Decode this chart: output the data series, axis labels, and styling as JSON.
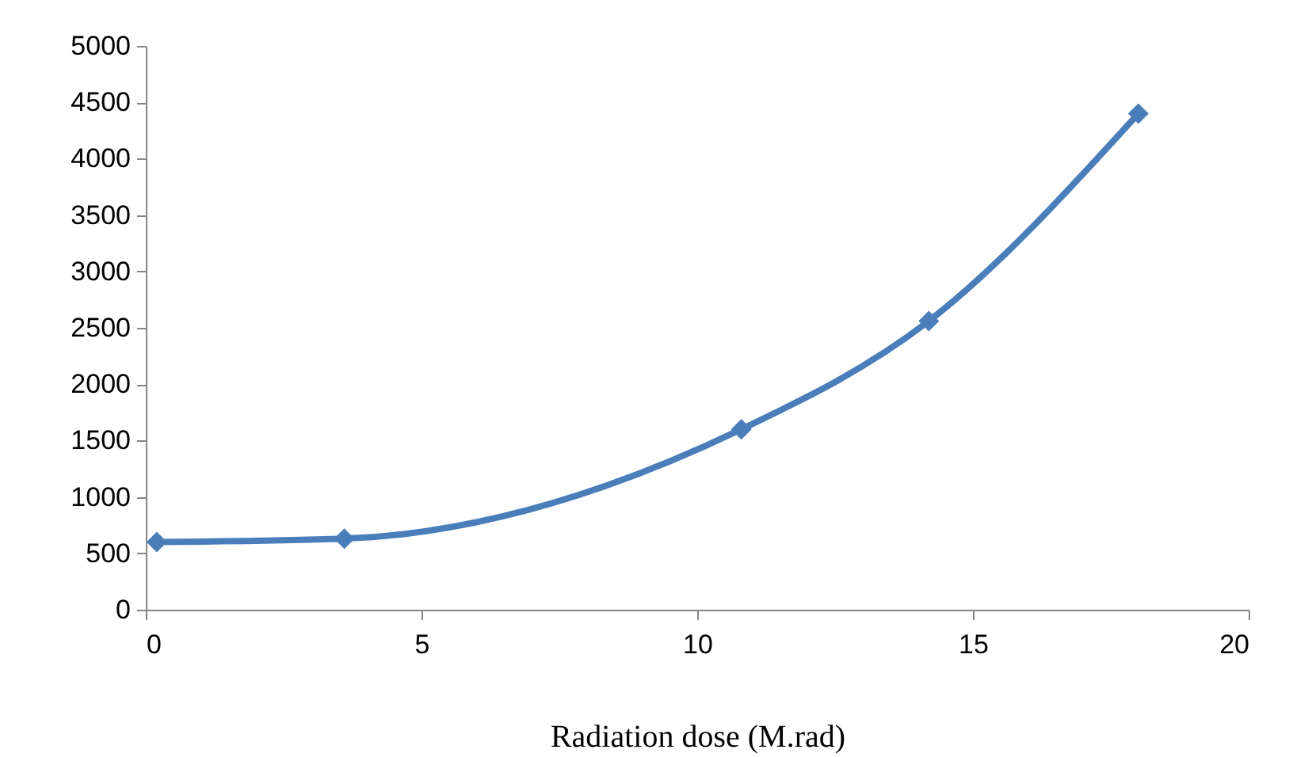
{
  "chart_data": {
    "type": "line",
    "xlabel": "Radiation dose (M.rad)",
    "x": [
      0.2,
      3.6,
      10.8,
      14.2,
      18
    ],
    "series": [
      {
        "color": "#4a7ebb",
        "values": [
          600,
          630,
          1600,
          2560,
          4400
        ]
      }
    ],
    "xlim": [
      0,
      20
    ],
    "xticks": [
      0,
      5,
      10,
      15,
      20
    ],
    "ylim": [
      0,
      5000
    ],
    "yticks": [
      0,
      500,
      1000,
      1500,
      2000,
      2500,
      3000,
      3500,
      4000,
      4500,
      5000
    ],
    "grid": false,
    "legend": false,
    "marker": "diamond",
    "line_style": "solid"
  }
}
